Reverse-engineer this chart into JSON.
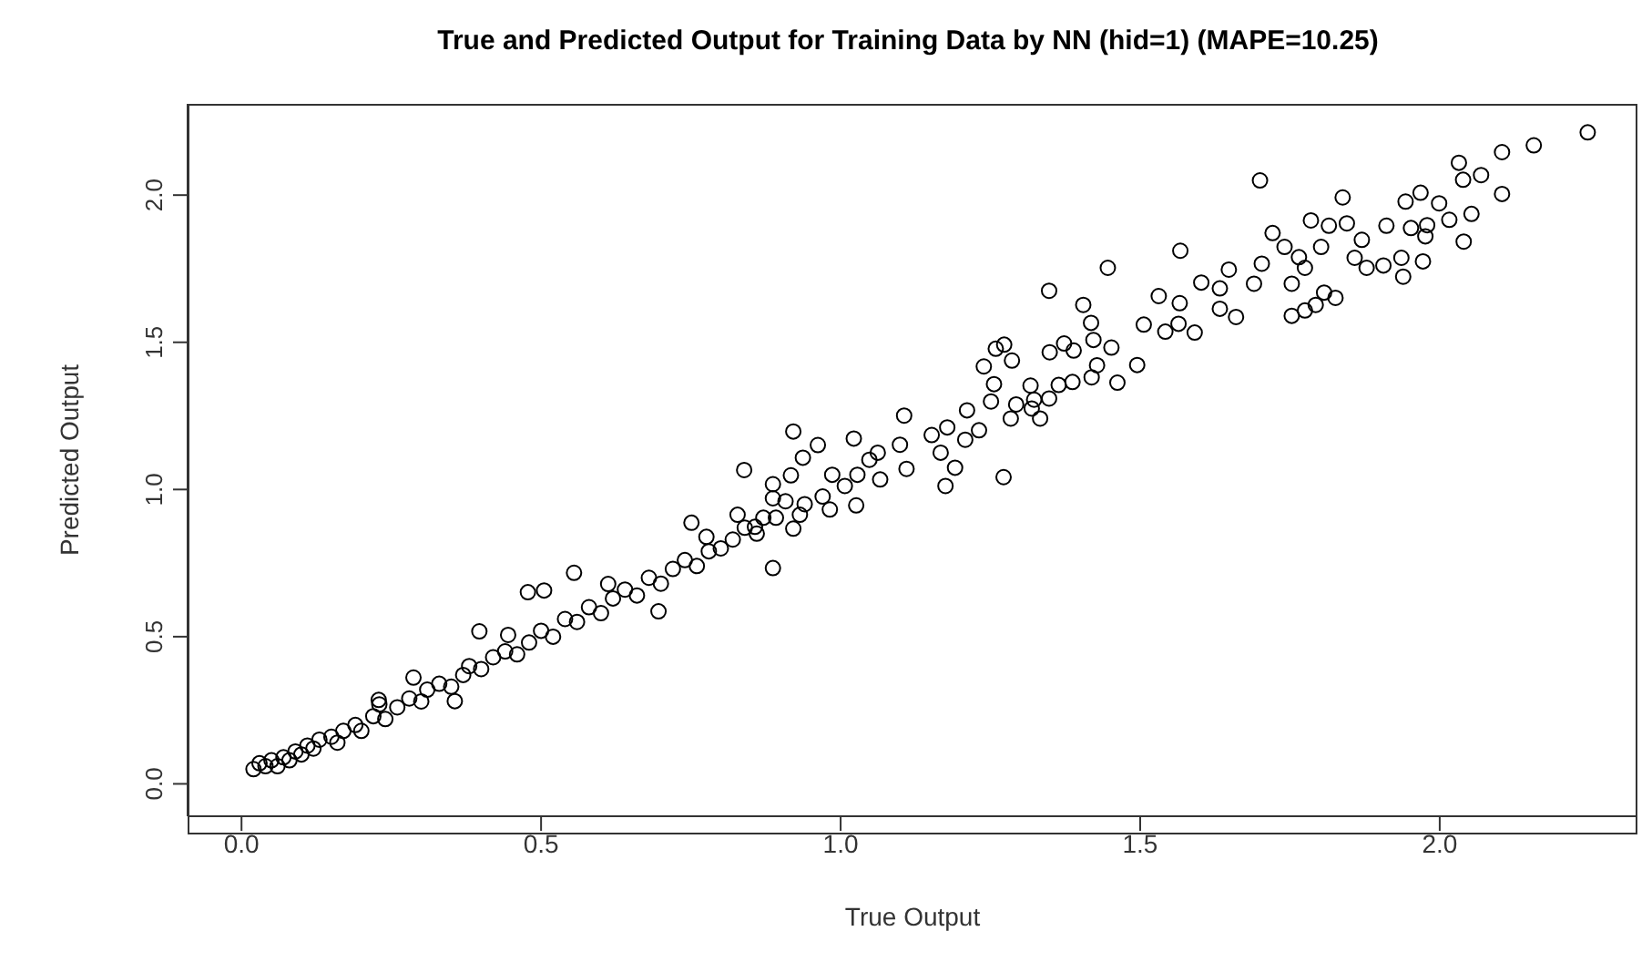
{
  "chart_data": {
    "type": "scatter",
    "title": "True and Predicted Output for Training Data by NN (hid=1) (MAPE=10.25)",
    "xlabel": "True Output",
    "ylabel": "Predicted Output",
    "marker": "circle",
    "grid": false,
    "legend": false,
    "xlim": [
      -0.09,
      2.33
    ],
    "ylim": [
      -0.11,
      2.31
    ],
    "xticks": [
      {
        "value": 0,
        "label": "0.0"
      },
      0.5,
      {
        "value": 1,
        "label": "1.0"
      },
      1.5,
      {
        "value": 2,
        "label": "2.0"
      }
    ],
    "yticks": [
      {
        "value": 0,
        "label": "0.0"
      },
      0.5,
      {
        "value": 1,
        "label": "1.0"
      },
      1.5,
      {
        "value": 2,
        "label": "2.0"
      }
    ],
    "series": [
      {
        "color": "#000000",
        "x": [
          2.247,
          2.157,
          2.104,
          2.032,
          2.069,
          2.039,
          2.104,
          1.968,
          1.943,
          1.999,
          2.053,
          2.016,
          1.979,
          1.952,
          1.911,
          1.976,
          2.04,
          1.972,
          1.936,
          1.906,
          1.878,
          1.858,
          1.939,
          1.87,
          1.845,
          1.838,
          1.785,
          1.815,
          1.802,
          1.765,
          1.775,
          1.753,
          1.807,
          1.826,
          1.793,
          1.775,
          1.753,
          1.7,
          1.721,
          1.741,
          1.703,
          1.69,
          1.648,
          1.633,
          1.602,
          1.633,
          1.66,
          1.567,
          1.566,
          1.531,
          1.506,
          1.542,
          1.564,
          1.591,
          1.446,
          1.348,
          1.405,
          1.418,
          1.422,
          1.452,
          1.495,
          1.462,
          1.428,
          1.419,
          1.387,
          1.373,
          1.389,
          1.349,
          1.364,
          1.317,
          1.273,
          1.259,
          1.286,
          1.239,
          1.256,
          1.323,
          1.348,
          1.293,
          1.251,
          1.333,
          1.284,
          1.319,
          1.211,
          1.178,
          1.231,
          1.152,
          1.208,
          1.106,
          1.099,
          1.062,
          1.048,
          1.028,
          1.11,
          1.066,
          1.191,
          1.175,
          1.272,
          1.167,
          0.921,
          1.022,
          0.962,
          0.937,
          0.839,
          0.887,
          0.917,
          0.986,
          1.007,
          0.908,
          0.887,
          0.94,
          0.97,
          0.982,
          1.026,
          0.932,
          0.871,
          0.828,
          0.892,
          0.857,
          0.921,
          0.751,
          0.776,
          0.887,
          0.696,
          0.612,
          0.555,
          0.505,
          0.478,
          0.397,
          0.445,
          0.287,
          0.356,
          0.229,
          0.02,
          0.03,
          0.04,
          0.05,
          0.06,
          0.07,
          0.08,
          0.09,
          0.1,
          0.11,
          0.12,
          0.13,
          0.15,
          0.16,
          0.17,
          0.19,
          0.2,
          0.22,
          0.23,
          0.24,
          0.26,
          0.28,
          0.3,
          0.31,
          0.33,
          0.35,
          0.37,
          0.38,
          0.4,
          0.42,
          0.44,
          0.46,
          0.48,
          0.5,
          0.52,
          0.54,
          0.56,
          0.58,
          0.6,
          0.62,
          0.64,
          0.66,
          0.68,
          0.7,
          0.72,
          0.74,
          0.76,
          0.78,
          0.8,
          0.82,
          0.84,
          0.86
        ],
        "values": [
          2.213,
          2.169,
          2.146,
          2.11,
          2.068,
          2.052,
          2.004,
          2.008,
          1.978,
          1.972,
          1.936,
          1.916,
          1.898,
          1.888,
          1.896,
          1.86,
          1.842,
          1.775,
          1.787,
          1.761,
          1.753,
          1.787,
          1.723,
          1.848,
          1.904,
          1.992,
          1.914,
          1.896,
          1.824,
          1.789,
          1.753,
          1.699,
          1.669,
          1.651,
          1.627,
          1.608,
          1.59,
          2.05,
          1.871,
          1.824,
          1.767,
          1.699,
          1.747,
          1.683,
          1.703,
          1.614,
          1.586,
          1.811,
          1.633,
          1.657,
          1.56,
          1.536,
          1.563,
          1.533,
          1.753,
          1.675,
          1.627,
          1.566,
          1.508,
          1.482,
          1.423,
          1.363,
          1.422,
          1.381,
          1.365,
          1.496,
          1.472,
          1.466,
          1.355,
          1.353,
          1.492,
          1.478,
          1.438,
          1.418,
          1.358,
          1.305,
          1.309,
          1.289,
          1.299,
          1.241,
          1.241,
          1.275,
          1.269,
          1.211,
          1.201,
          1.185,
          1.169,
          1.251,
          1.152,
          1.125,
          1.101,
          1.05,
          1.07,
          1.034,
          1.074,
          1.012,
          1.042,
          1.125,
          1.197,
          1.173,
          1.151,
          1.108,
          1.066,
          1.018,
          1.048,
          1.05,
          1.012,
          0.96,
          0.97,
          0.95,
          0.976,
          0.932,
          0.946,
          0.914,
          0.904,
          0.914,
          0.904,
          0.873,
          0.867,
          0.887,
          0.839,
          0.733,
          0.586,
          0.679,
          0.717,
          0.657,
          0.651,
          0.518,
          0.506,
          0.361,
          0.281,
          0.285,
          0.05,
          0.07,
          0.06,
          0.08,
          0.06,
          0.09,
          0.08,
          0.11,
          0.1,
          0.13,
          0.12,
          0.15,
          0.16,
          0.14,
          0.18,
          0.2,
          0.18,
          0.23,
          0.27,
          0.22,
          0.26,
          0.29,
          0.28,
          0.32,
          0.34,
          0.33,
          0.37,
          0.4,
          0.39,
          0.43,
          0.45,
          0.44,
          0.48,
          0.52,
          0.5,
          0.56,
          0.55,
          0.6,
          0.58,
          0.63,
          0.66,
          0.64,
          0.7,
          0.68,
          0.73,
          0.76,
          0.74,
          0.79,
          0.8,
          0.83,
          0.87,
          0.85
        ]
      }
    ]
  }
}
